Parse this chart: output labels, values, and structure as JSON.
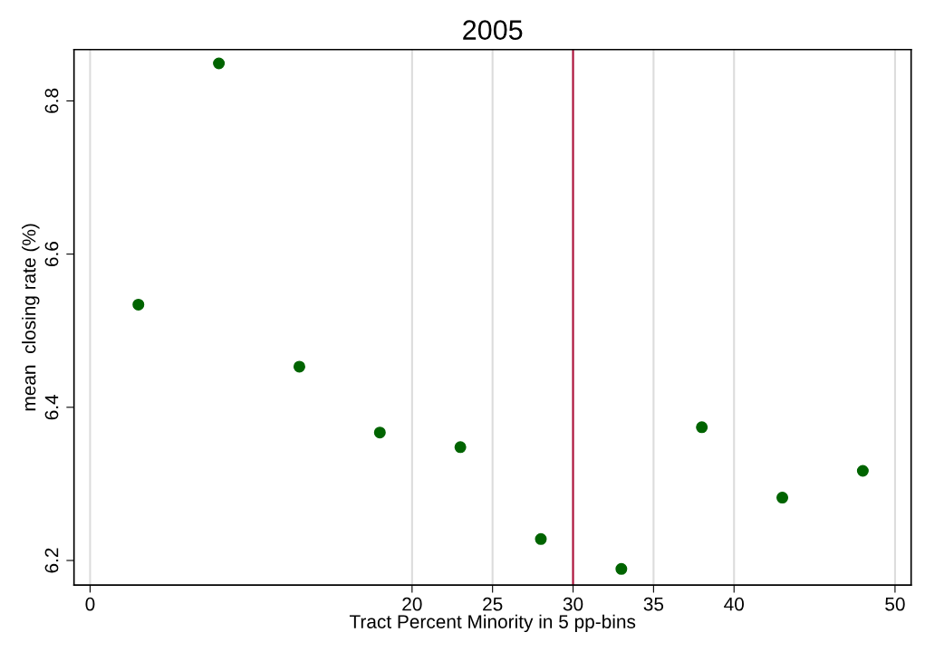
{
  "chart_data": {
    "type": "scatter",
    "title": "2005",
    "xlabel": "Tract Percent Minority in 5 pp-bins",
    "ylabel": "mean  closing rate (%)",
    "x": [
      3,
      8,
      13,
      18,
      23,
      28,
      33,
      38,
      43,
      48
    ],
    "series": [
      {
        "color": "#006400",
        "values": [
          6.534,
          6.849,
          6.453,
          6.367,
          6.348,
          6.228,
          6.189,
          6.374,
          6.282,
          6.317
        ]
      }
    ],
    "xlim": [
      -1,
      51
    ],
    "xticks": [
      0,
      20,
      25,
      30,
      35,
      40,
      50
    ],
    "ylim": [
      6.168,
      6.867
    ],
    "yticks": [
      6.2,
      6.4,
      6.6,
      6.8
    ],
    "grid": "x",
    "marker": "circle",
    "ref_lines": [
      {
        "axis": "x",
        "value": 30,
        "color": "#b0103a"
      }
    ]
  }
}
